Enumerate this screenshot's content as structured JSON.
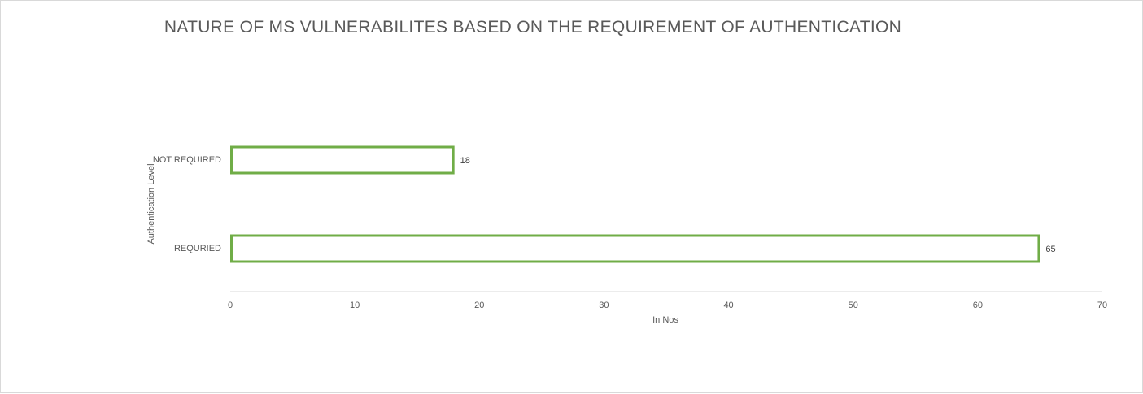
{
  "chart_data": {
    "type": "bar",
    "orientation": "horizontal",
    "title": "NATURE OF MS VULNERABILITES BASED ON THE REQUIREMENT OF AUTHENTICATION",
    "xlabel": "In Nos",
    "ylabel": "Authentication Level",
    "categories": [
      "NOT REQUIRED",
      "REQURIED"
    ],
    "values": [
      18,
      65
    ],
    "data_labels": [
      "18",
      "65"
    ],
    "xlim": [
      0,
      70
    ],
    "x_ticks": [
      0,
      10,
      20,
      30,
      40,
      50,
      60,
      70
    ],
    "grid": false,
    "legend": "none",
    "bar_fill": "#ffffff",
    "bar_outline_color": "#70ad47",
    "axis_line_color": "#d9d9d9",
    "text_color": "#595959"
  }
}
